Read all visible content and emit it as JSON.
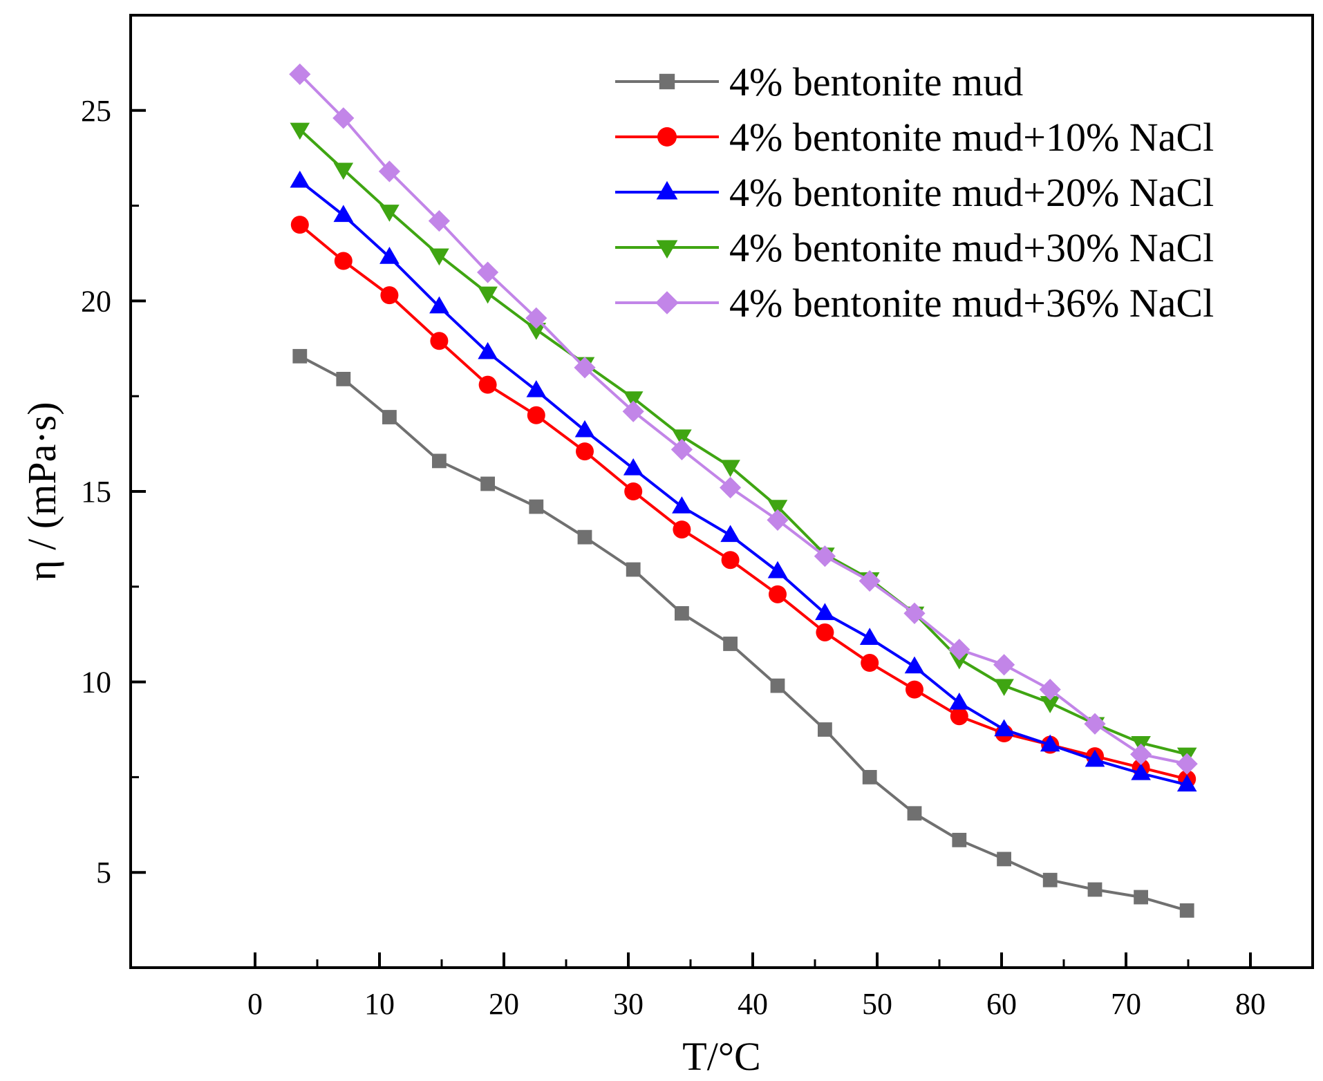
{
  "chart_data": {
    "type": "line",
    "title": "",
    "xlabel": "T/°C",
    "ylabel": "η / (mPa·s)",
    "xlim": [
      -10,
      85
    ],
    "ylim": [
      2.5,
      27.5
    ],
    "xticks": [
      0,
      10,
      20,
      30,
      40,
      50,
      60,
      70,
      80
    ],
    "yticks": [
      5,
      10,
      15,
      20,
      25
    ],
    "legend_position": "top-right",
    "x": [
      3.6,
      7.1,
      10.8,
      14.8,
      18.7,
      22.6,
      26.5,
      30.4,
      34.3,
      38.2,
      42.0,
      45.8,
      49.4,
      53.0,
      56.6,
      60.2,
      63.9,
      67.5,
      71.2,
      74.9
    ],
    "series": [
      {
        "name": "4% bentonite mud",
        "color": "#707070",
        "marker": "square",
        "values": [
          18.55,
          17.95,
          16.95,
          15.8,
          15.2,
          14.6,
          13.8,
          12.95,
          11.8,
          11.0,
          9.9,
          8.75,
          7.5,
          6.55,
          5.85,
          5.35,
          4.8,
          4.55,
          4.35,
          4.0
        ]
      },
      {
        "name": "4% bentonite mud+10% NaCl",
        "color": "#ff0000",
        "marker": "circle",
        "values": [
          22.0,
          21.05,
          20.15,
          18.95,
          17.8,
          17.0,
          16.05,
          15.0,
          14.0,
          13.2,
          12.3,
          11.3,
          10.5,
          9.8,
          9.1,
          8.65,
          8.35,
          8.05,
          7.75,
          7.45
        ]
      },
      {
        "name": "4% bentonite mud+20% NaCl",
        "color": "#0000ff",
        "marker": "triangle-up",
        "values": [
          23.15,
          22.25,
          21.15,
          19.85,
          18.65,
          17.65,
          16.6,
          15.6,
          14.6,
          13.85,
          12.9,
          11.8,
          11.15,
          10.4,
          9.45,
          8.75,
          8.35,
          7.95,
          7.6,
          7.3
        ]
      },
      {
        "name": "4% bentonite mud+30% NaCl",
        "color": "#3fa512",
        "marker": "triangle-down",
        "values": [
          24.5,
          23.45,
          22.35,
          21.2,
          20.2,
          19.25,
          18.35,
          17.45,
          16.45,
          15.65,
          14.6,
          13.35,
          12.7,
          11.8,
          10.6,
          9.9,
          9.45,
          8.9,
          8.4,
          8.1
        ]
      },
      {
        "name": "4% bentonite mud+36% NaCl",
        "color": "#c285e8",
        "marker": "diamond",
        "values": [
          25.95,
          24.8,
          23.4,
          22.1,
          20.75,
          19.55,
          18.25,
          17.1,
          16.1,
          15.1,
          14.25,
          13.3,
          12.65,
          11.8,
          10.85,
          10.45,
          9.8,
          8.9,
          8.1,
          7.85
        ]
      }
    ]
  }
}
